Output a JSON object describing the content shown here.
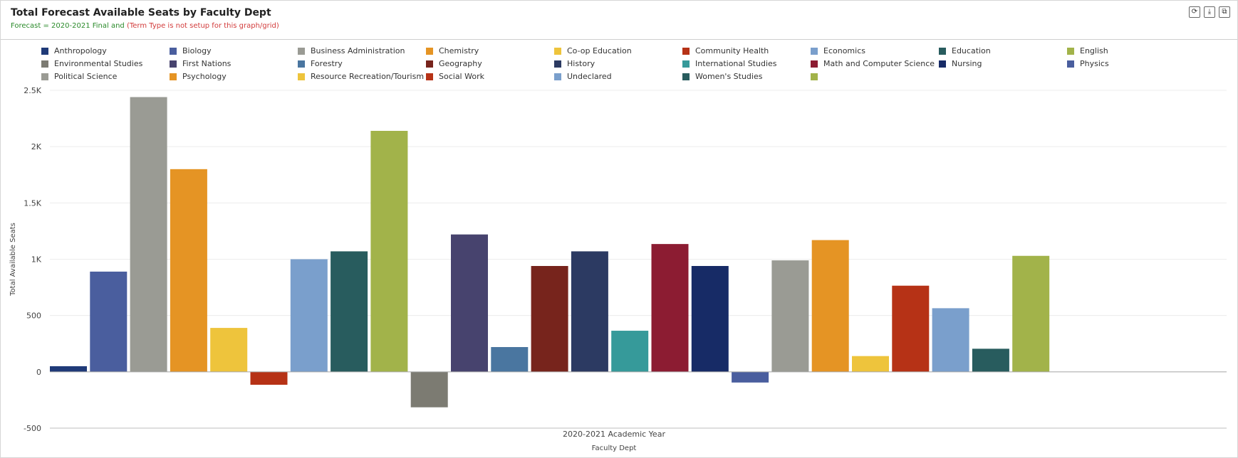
{
  "header": {
    "title": "Total Forecast Available Seats by Faculty Dept",
    "subtitle_ok": "Forecast = 2020-2021 Final and ",
    "subtitle_warn": "(Term Type is not setup for this graph/grid)",
    "tools": {
      "refresh": "⟳",
      "download": "⤓",
      "expand": "⧉"
    }
  },
  "chart_data": {
    "type": "bar",
    "title": "Total Forecast Available Seats by Faculty Dept",
    "xlabel": "Faculty Dept",
    "ylabel": "Total Available Seats",
    "categories": [
      "2020-2021 Academic Year"
    ],
    "ylim": [
      -500,
      2500
    ],
    "yticks": [
      -500,
      0,
      500,
      1000,
      1500,
      2000,
      2500
    ],
    "ytick_labels": [
      "-500",
      "0",
      "500",
      "1K",
      "1.5K",
      "2K",
      "2.5K"
    ],
    "grid": true,
    "legend_position": "top",
    "series": [
      {
        "name": "Anthropology",
        "value": 50,
        "color": "#1f3a78"
      },
      {
        "name": "Biology",
        "value": 890,
        "color": "#4a5e9e"
      },
      {
        "name": "Business Administration",
        "value": 2440,
        "color": "#9a9b94"
      },
      {
        "name": "Chemistry",
        "value": 1800,
        "color": "#e59424"
      },
      {
        "name": "Co-op Education",
        "value": 390,
        "color": "#eec43c"
      },
      {
        "name": "Community Health",
        "value": -115,
        "color": "#b63216"
      },
      {
        "name": "Economics",
        "value": 1000,
        "color": "#7a9fcc"
      },
      {
        "name": "Education",
        "value": 1070,
        "color": "#285c5e"
      },
      {
        "name": "English",
        "value": 2140,
        "color": "#a2b34a"
      },
      {
        "name": "Environmental Studies",
        "value": -315,
        "color": "#7c7b72"
      },
      {
        "name": "First Nations",
        "value": 1220,
        "color": "#47436e"
      },
      {
        "name": "Forestry",
        "value": 220,
        "color": "#4a76a0"
      },
      {
        "name": "Geography",
        "value": 940,
        "color": "#77241c"
      },
      {
        "name": "History",
        "value": 1070,
        "color": "#2c3a62"
      },
      {
        "name": "International Studies",
        "value": 365,
        "color": "#369a9a"
      },
      {
        "name": "Math and Computer Science",
        "value": 1135,
        "color": "#8c1c32"
      },
      {
        "name": "Nursing",
        "value": 940,
        "color": "#172b66"
      },
      {
        "name": "Physics",
        "value": -95,
        "color": "#4a5e9e"
      },
      {
        "name": "Political Science",
        "value": 990,
        "color": "#9a9b94"
      },
      {
        "name": "Psychology",
        "value": 1170,
        "color": "#e59424"
      },
      {
        "name": "Resource Recreation/Tourism",
        "value": 140,
        "color": "#eec43c"
      },
      {
        "name": "Social Work",
        "value": 765,
        "color": "#b63216"
      },
      {
        "name": "Undeclared",
        "value": 565,
        "color": "#7a9fcc"
      },
      {
        "name": "Women's Studies",
        "value": 205,
        "color": "#285c5e"
      },
      {
        "name": "",
        "value": 1030,
        "color": "#a2b34a"
      }
    ]
  }
}
